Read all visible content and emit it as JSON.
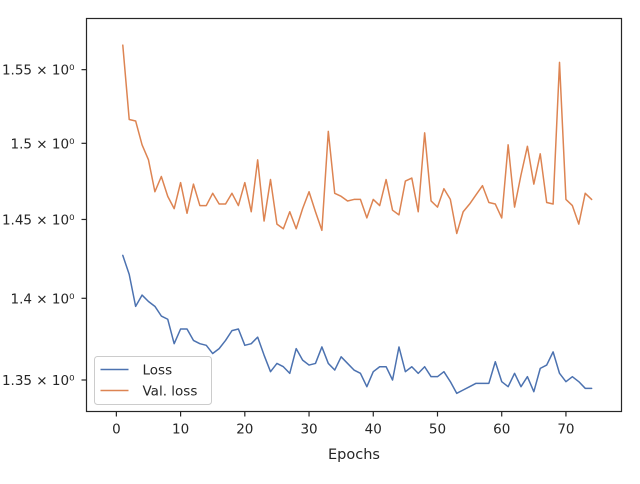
{
  "chart_data": {
    "type": "line",
    "title": "",
    "xlabel": "Epochs",
    "ylabel": "",
    "y_scale": "log",
    "xlim": [
      -4.65,
      78.65
    ],
    "ylim": [
      1.3312,
      1.5857
    ],
    "x_ticks": [
      0,
      10,
      20,
      30,
      40,
      50,
      60,
      70
    ],
    "x_tick_labels": [
      "0",
      "10",
      "20",
      "30",
      "40",
      "50",
      "60",
      "70"
    ],
    "y_ticks": [
      1.35,
      1.4,
      1.45,
      1.5,
      1.55
    ],
    "y_tick_labels": [
      "1.35 × 10⁰",
      "1.4 × 10⁰",
      "1.45 × 10⁰",
      "1.5 × 10⁰",
      "1.55 × 10⁰"
    ],
    "legend_position": "lower-left",
    "grid": false,
    "x": [
      1,
      2,
      3,
      4,
      5,
      6,
      7,
      8,
      9,
      10,
      11,
      12,
      13,
      14,
      15,
      16,
      17,
      18,
      19,
      20,
      21,
      22,
      23,
      24,
      25,
      26,
      27,
      28,
      29,
      30,
      31,
      32,
      33,
      34,
      35,
      36,
      37,
      38,
      39,
      40,
      41,
      42,
      43,
      44,
      45,
      46,
      47,
      48,
      49,
      50,
      51,
      52,
      53,
      54,
      55,
      56,
      57,
      58,
      59,
      60,
      61,
      62,
      63,
      64,
      65,
      66,
      67,
      68,
      69,
      70,
      71,
      72,
      73,
      74
    ],
    "series": [
      {
        "name": "Loss",
        "color": "#4c72b0",
        "values": [
          1.427,
          1.415,
          1.395,
          1.402,
          1.398,
          1.395,
          1.389,
          1.387,
          1.372,
          1.381,
          1.381,
          1.374,
          1.372,
          1.371,
          1.366,
          1.369,
          1.374,
          1.38,
          1.381,
          1.371,
          1.372,
          1.376,
          1.365,
          1.355,
          1.36,
          1.358,
          1.354,
          1.369,
          1.362,
          1.359,
          1.36,
          1.37,
          1.36,
          1.356,
          1.364,
          1.36,
          1.356,
          1.354,
          1.346,
          1.355,
          1.358,
          1.358,
          1.35,
          1.37,
          1.355,
          1.358,
          1.354,
          1.358,
          1.352,
          1.352,
          1.355,
          1.349,
          1.342,
          1.344,
          1.346,
          1.348,
          1.348,
          1.348,
          1.361,
          1.349,
          1.346,
          1.354,
          1.346,
          1.352,
          1.343,
          1.357,
          1.359,
          1.367,
          1.354,
          1.349,
          1.352,
          1.349,
          1.345,
          1.345
        ]
      },
      {
        "name": "Val. loss",
        "color": "#dd8452",
        "values": [
          1.567,
          1.516,
          1.515,
          1.499,
          1.489,
          1.468,
          1.478,
          1.465,
          1.457,
          1.474,
          1.454,
          1.473,
          1.459,
          1.459,
          1.467,
          1.46,
          1.46,
          1.467,
          1.459,
          1.474,
          1.455,
          1.489,
          1.449,
          1.476,
          1.447,
          1.444,
          1.455,
          1.444,
          1.457,
          1.468,
          1.455,
          1.443,
          1.508,
          1.467,
          1.465,
          1.462,
          1.463,
          1.463,
          1.451,
          1.463,
          1.459,
          1.476,
          1.456,
          1.453,
          1.475,
          1.477,
          1.455,
          1.507,
          1.462,
          1.458,
          1.47,
          1.463,
          1.441,
          1.455,
          1.46,
          1.466,
          1.472,
          1.461,
          1.46,
          1.451,
          1.499,
          1.458,
          1.479,
          1.498,
          1.473,
          1.493,
          1.461,
          1.46,
          1.555,
          1.463,
          1.459,
          1.447,
          1.467,
          1.463
        ]
      }
    ]
  }
}
